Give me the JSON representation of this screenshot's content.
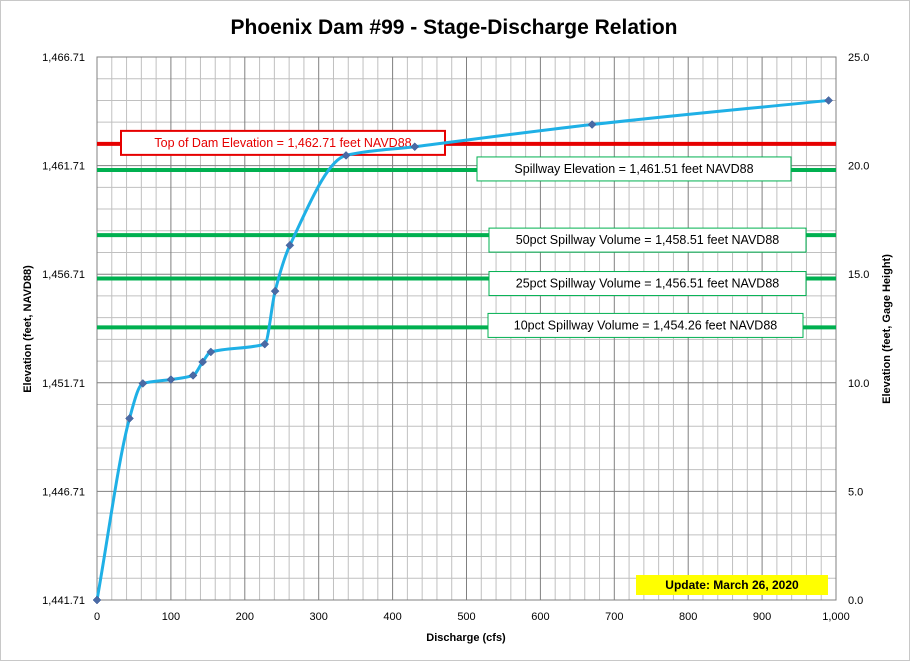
{
  "chart_data": {
    "type": "line",
    "title": "Phoenix Dam #99 - Stage-Discharge Relation",
    "xlabel": "Discharge  (cfs)",
    "ylabel_left": "Elevation  (feet, NAVD88)",
    "ylabel_right": "Elevation  (feet, Gage Height)",
    "xlim": [
      0,
      1000
    ],
    "ylim_left": [
      1441.71,
      1466.71
    ],
    "ylim_right": [
      0,
      25
    ],
    "x_ticks": [
      "0",
      "100",
      "200",
      "300",
      "400",
      "500",
      "600",
      "700",
      "800",
      "900",
      "1,000"
    ],
    "y_ticks_left": [
      "1,441.71",
      "1,446.71",
      "1,451.71",
      "1,456.71",
      "1,461.71",
      "1,466.71"
    ],
    "y_ticks_right": [
      "0.0",
      "5.0",
      "10.0",
      "15.0",
      "20.0",
      "25.0"
    ],
    "grid": true,
    "series": [
      {
        "color": "#1fb0e6",
        "marker_color": "#4a6aa5",
        "x": [
          0,
          44,
          62,
          100,
          130,
          143,
          154,
          227,
          241,
          261,
          337,
          430,
          670,
          990
        ],
        "y": [
          1441.71,
          1450.07,
          1451.68,
          1451.86,
          1452.05,
          1452.67,
          1453.13,
          1453.49,
          1455.93,
          1458.04,
          1462.18,
          1462.58,
          1463.6,
          1464.71
        ]
      }
    ],
    "reference_lines": [
      {
        "label": "Top of Dam Elevation = 1,462.71  feet NAVD88",
        "y": 1462.71,
        "color": "#e60000"
      },
      {
        "label": "Spillway Elevation = 1,461.51  feet NAVD88",
        "y": 1461.51,
        "color": "#00b050"
      },
      {
        "label": "50pct Spillway Volume = 1,458.51  feet NAVD88",
        "y": 1458.51,
        "color": "#00b050"
      },
      {
        "label": "25pct Spillway Volume = 1,456.51  feet NAVD88",
        "y": 1456.51,
        "color": "#00b050"
      },
      {
        "label": "10pct Spillway Volume = 1,454.26  feet NAVD88",
        "y": 1454.26,
        "color": "#00b050"
      }
    ],
    "update_note": "Update: March 26, 2020",
    "update_color": "#ffff00"
  }
}
